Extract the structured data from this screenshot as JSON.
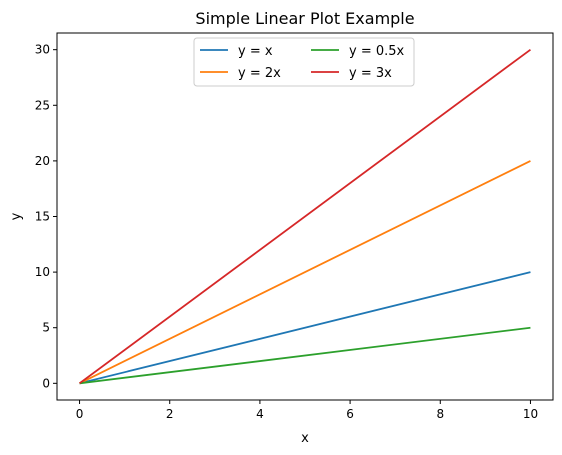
{
  "chart_data": {
    "type": "line",
    "title": "Simple Linear Plot Example",
    "xlabel": "x",
    "ylabel": "y",
    "xlim": [
      -0.5,
      10.5
    ],
    "ylim": [
      -1.5,
      31.5
    ],
    "xticks": [
      0,
      2,
      4,
      6,
      8,
      10
    ],
    "yticks": [
      0,
      5,
      10,
      15,
      20,
      25,
      30
    ],
    "grid": false,
    "legend_position": "top-center",
    "legend_columns": 2,
    "x": [
      0,
      10
    ],
    "series": [
      {
        "name": "y = x",
        "values": [
          0,
          10
        ],
        "color": "#1f77b4"
      },
      {
        "name": "y = 2x",
        "values": [
          0,
          20
        ],
        "color": "#ff7f0e"
      },
      {
        "name": "y = 0.5x",
        "values": [
          0,
          5
        ],
        "color": "#2ca02c"
      },
      {
        "name": "y = 3x",
        "values": [
          0,
          30
        ],
        "color": "#d62728"
      }
    ]
  }
}
